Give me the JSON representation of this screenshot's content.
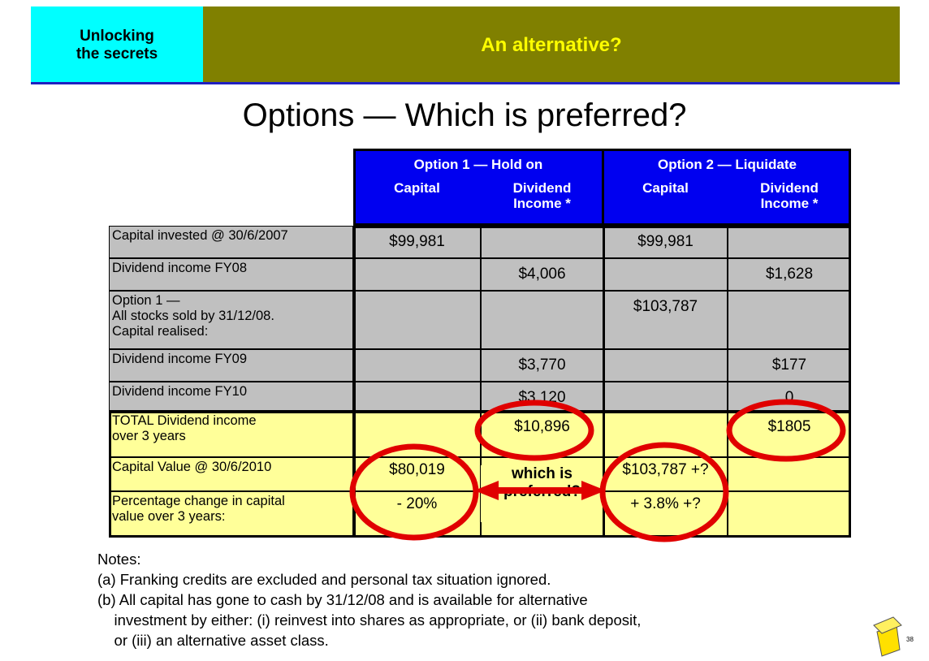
{
  "header": {
    "left": "Unlocking\nthe secrets",
    "right": "An alternative?"
  },
  "title": "Options — Which is preferred?",
  "table": {
    "group_headers": [
      "Option 1 — Hold on",
      "Option 2 — Liquidate"
    ],
    "column_headers": [
      "Capital",
      "Dividend\nIncome *",
      "Capital",
      "Dividend\nIncome *"
    ],
    "rows": [
      {
        "label": "Capital invested @ 30/6/2007",
        "cells": [
          "$99,981",
          null,
          "$99,981",
          null
        ]
      },
      {
        "label": "Dividend income FY08",
        "cells": [
          null,
          "$4,006",
          null,
          "$1,628"
        ]
      },
      {
        "label": "Option 1 —\nAll stocks sold by 31/12/08.\nCapital realised:",
        "cells": [
          null,
          null,
          "$103,787",
          null
        ]
      },
      {
        "label": "Dividend income FY09",
        "cells": [
          null,
          "$3,770",
          null,
          "$177"
        ]
      },
      {
        "label": "Dividend income FY10",
        "cells": [
          null,
          "$3,120",
          null,
          "0"
        ]
      },
      {
        "label": "TOTAL Dividend income\nover 3 years",
        "cells": [
          null,
          "$10,896",
          null,
          "$1805"
        ]
      },
      {
        "label": "Capital Value @ 30/6/2010",
        "cells": [
          "$80,019",
          null,
          "$103,787 +?",
          null
        ]
      },
      {
        "label": "Percentage change in capital\nvalue over 3 years:",
        "cells": [
          "- 20%",
          null,
          "+ 3.8% +?",
          null
        ]
      }
    ],
    "annotation": "which is\npreferred?"
  },
  "notes": {
    "heading": "Notes:",
    "items": [
      "(a) Franking credits are excluded and personal tax situation ignored.",
      "(b) All capital has gone to cash by 31/12/08 and is available for alternative\n    investment by either: (i) reinvest into shares as appropriate, or (ii) bank deposit,\n    or (iii) an alternative asset class."
    ]
  },
  "page_number": "38"
}
